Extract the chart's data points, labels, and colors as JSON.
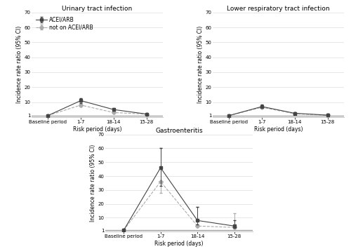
{
  "charts": [
    {
      "title": "Urinary tract infection",
      "xticklabels": [
        "Baseline period",
        "1-7",
        "18-14",
        "15-28"
      ],
      "xlabel": "Risk period (days)",
      "ylabel": "Incidence rate ratio (95% CI)",
      "ylim": [
        0,
        70
      ],
      "yticks": [
        1,
        10,
        20,
        30,
        40,
        50,
        60,
        70
      ],
      "hline_y": 1,
      "show_legend": true,
      "acei_arb": {
        "y": [
          1,
          11,
          5,
          2
        ],
        "yerr_low": [
          0.1,
          1.5,
          1.0,
          0.5
        ],
        "yerr_high": [
          0.1,
          1.5,
          1.0,
          0.5
        ],
        "color": "#444444",
        "linestyle": "-",
        "marker": "s",
        "label": "ACEI/ARB"
      },
      "not_acei_arb": {
        "y": [
          1,
          8,
          3,
          2
        ],
        "yerr_low": [
          0.1,
          1.0,
          0.5,
          0.3
        ],
        "yerr_high": [
          0.1,
          1.0,
          0.5,
          0.3
        ],
        "color": "#aaaaaa",
        "linestyle": "--",
        "marker": "D",
        "label": "not on ACEI/ARB"
      }
    },
    {
      "title": "Lower respiratory tract infection",
      "xticklabels": [
        "Baseline period",
        "1-7",
        "18-14",
        "15-28"
      ],
      "xlabel": "Risk period (days)",
      "ylabel": "Incidence rate ratio (95% CI)",
      "ylim": [
        0,
        70
      ],
      "yticks": [
        1,
        10,
        20,
        30,
        40,
        50,
        60,
        70
      ],
      "hline_y": 1,
      "show_legend": false,
      "acei_arb": {
        "y": [
          1,
          7,
          2.5,
          1.3
        ],
        "yerr_low": [
          0.1,
          0.7,
          0.5,
          0.2
        ],
        "yerr_high": [
          0.1,
          1.5,
          0.5,
          0.2
        ],
        "color": "#444444",
        "linestyle": "-",
        "marker": "s",
        "label": "ACEI/ARB"
      },
      "not_acei_arb": {
        "y": [
          1,
          6.5,
          2.2,
          1.2
        ],
        "yerr_low": [
          0.1,
          0.6,
          0.5,
          0.2
        ],
        "yerr_high": [
          0.1,
          0.8,
          0.5,
          0.2
        ],
        "color": "#aaaaaa",
        "linestyle": "--",
        "marker": "D",
        "label": "not on ACEI/ARB"
      }
    },
    {
      "title": "Gastroenteritis",
      "xticklabels": [
        "Baseline period",
        "1-7",
        "18-14",
        "15-28"
      ],
      "xlabel": "Risk period (days)",
      "ylabel": "Incidence rate ratio (95% CI)",
      "ylim": [
        0,
        70
      ],
      "yticks": [
        1,
        10,
        20,
        30,
        40,
        50,
        60,
        70
      ],
      "hline_y": 1,
      "show_legend": false,
      "acei_arb": {
        "y": [
          1,
          46,
          8,
          4
        ],
        "yerr_low": [
          0.1,
          13,
          3,
          1.5
        ],
        "yerr_high": [
          0.1,
          14,
          10,
          4
        ],
        "color": "#444444",
        "linestyle": "-",
        "marker": "s",
        "label": "ACEI/ARB"
      },
      "not_acei_arb": {
        "y": [
          1,
          36,
          4,
          3
        ],
        "yerr_low": [
          0.1,
          8,
          1,
          1
        ],
        "yerr_high": [
          0.1,
          24,
          14,
          10
        ],
        "color": "#aaaaaa",
        "linestyle": "--",
        "marker": "D",
        "label": "not on ACEI/ARB"
      }
    }
  ],
  "background_color": "#ffffff",
  "hline_color": "#999999",
  "grid_color": "#dddddd",
  "title_fontsize": 6.5,
  "label_fontsize": 5.5,
  "tick_fontsize": 5,
  "legend_fontsize": 5.5,
  "markersize": 3,
  "linewidth": 0.8,
  "capsize": 1.5,
  "elinewidth": 0.7
}
